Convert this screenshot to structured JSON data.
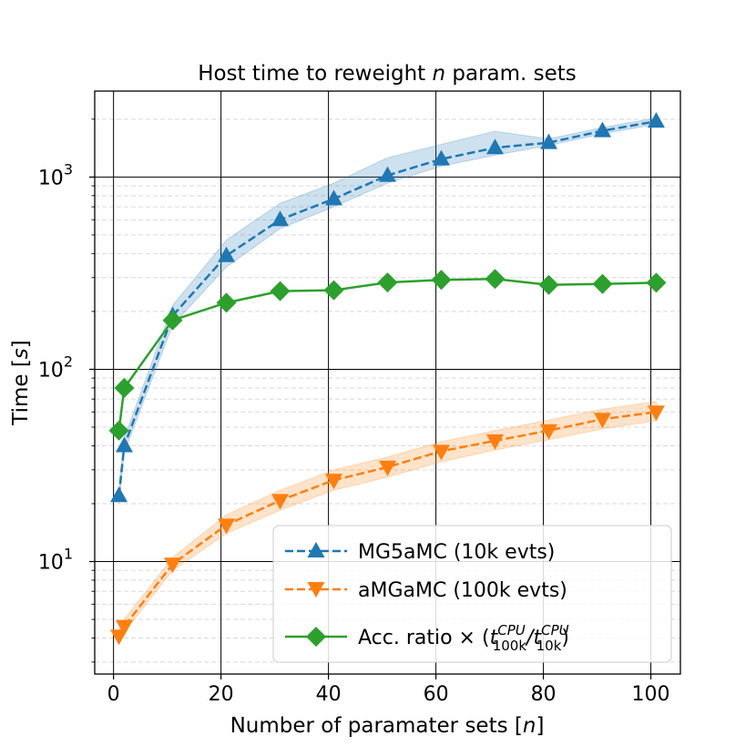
{
  "chart_data": {
    "type": "line",
    "title_text": "Host time to reweight ",
    "title_var": "n",
    "title_suffix": " param. sets",
    "xlabel_text": "Number of paramater sets [",
    "xlabel_var": "n",
    "xlabel_suffix": "]",
    "ylabel_text": "Time [",
    "ylabel_var": "s",
    "ylabel_suffix": "]",
    "xlim": [
      -3.5,
      105.5
    ],
    "ylim": [
      2.6,
      2800
    ],
    "yscale": "log",
    "grid": true,
    "legend_position": "lower right",
    "xticks": [
      "0",
      "20",
      "40",
      "60",
      "80",
      "100"
    ],
    "yticks": [
      {
        "base": "10",
        "exp": "1"
      },
      {
        "base": "10",
        "exp": "2"
      },
      {
        "base": "10",
        "exp": "3"
      }
    ],
    "series": [
      {
        "name": "MG5aMC (10k evts)",
        "color": "#1f77b4",
        "linestyle": "dashed",
        "marker": "triangle-up",
        "x": [
          1,
          2,
          11,
          21,
          31,
          41,
          51,
          61,
          71,
          81,
          91,
          101
        ],
        "y": [
          22,
          40,
          190,
          390,
          600,
          770,
          1020,
          1240,
          1420,
          1510,
          1740,
          1950
        ],
        "band_low": [
          20,
          37,
          170,
          340,
          540,
          700,
          930,
          1140,
          1300,
          1460,
          1680,
          1880
        ],
        "band_high": [
          24,
          44,
          215,
          470,
          730,
          930,
          1260,
          1480,
          1730,
          1580,
          1810,
          2030
        ]
      },
      {
        "name": "aMGaMC (100k evts)",
        "color": "#ff7f0e",
        "linestyle": "dashed",
        "marker": "triangle-down",
        "x": [
          1,
          2,
          11,
          21,
          31,
          41,
          51,
          61,
          71,
          81,
          91,
          101
        ],
        "y": [
          4.1,
          4.6,
          9.7,
          15.5,
          20.8,
          26.5,
          31.0,
          37.5,
          42.5,
          48.0,
          55.0,
          60.0
        ],
        "band_low": [
          3.8,
          4.3,
          9.0,
          14.0,
          18.5,
          23.5,
          27.5,
          33.0,
          38.0,
          43.0,
          49.0,
          54.0
        ],
        "band_high": [
          4.4,
          5.0,
          10.5,
          17.5,
          23.5,
          30.0,
          35.0,
          42.0,
          48.0,
          54.5,
          62.0,
          68.0
        ]
      },
      {
        "name_prefix": "Acc. ratio × (",
        "color": "#2ca02c",
        "linestyle": "solid",
        "marker": "diamond",
        "x": [
          1,
          2,
          11,
          21,
          31,
          41,
          51,
          61,
          71,
          81,
          91,
          101
        ],
        "y": [
          48,
          80,
          180,
          222,
          255,
          258,
          283,
          292,
          295,
          275,
          278,
          282
        ]
      }
    ],
    "legend_math": {
      "t": "t",
      "sup": "CPU",
      "sub_num": "100k",
      "sub_den": "10k",
      "slash": "/",
      "close": ")"
    }
  }
}
